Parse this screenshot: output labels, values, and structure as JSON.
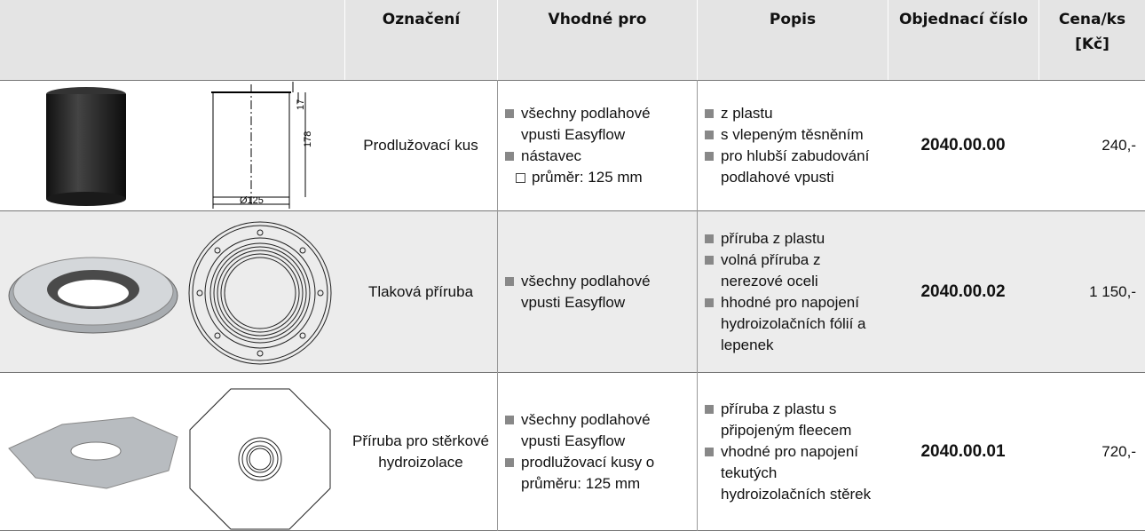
{
  "header": {
    "columns": [
      "Označení",
      "Vhodné pro",
      "Popis",
      "Objednací číslo",
      "Cena/ks [Kč]"
    ]
  },
  "rows": [
    {
      "drawing_labels": [
        "17",
        "178",
        "Ø125"
      ],
      "name": "Prodlužovací kus",
      "suitable": [
        {
          "text": "všechny podlahové vpusti Easyflow"
        },
        {
          "text": "nástavec",
          "sub": "průměr: 125 mm"
        }
      ],
      "description": [
        "z plastu",
        "s vlepeným těsněním",
        "pro hlubší zabudování podlahové vpusti"
      ],
      "order_number": "2040.00.00",
      "price": "240,-"
    },
    {
      "name": "Tlaková příruba",
      "suitable": [
        {
          "text": "všechny podlahové vpusti Easyflow"
        }
      ],
      "description": [
        "příruba z plastu",
        "volná příruba z nerezové oceli",
        "hhodné pro napojení hydroizolačních fólií a lepenek"
      ],
      "order_number": "2040.00.02",
      "price": "1 150,-"
    },
    {
      "name": "Příruba pro stěrkové hydroizolace",
      "suitable": [
        {
          "text": "všechny podlahové vpusti Easyflow"
        },
        {
          "text": "prodlužovací kusy o průměru: 125 mm"
        }
      ],
      "description": [
        "příruba z plastu s připojeným fleecem",
        "vhodné pro napojení tekutých hydroizolačních stěrek"
      ],
      "order_number": "2040.00.01",
      "price": "720,-"
    }
  ]
}
